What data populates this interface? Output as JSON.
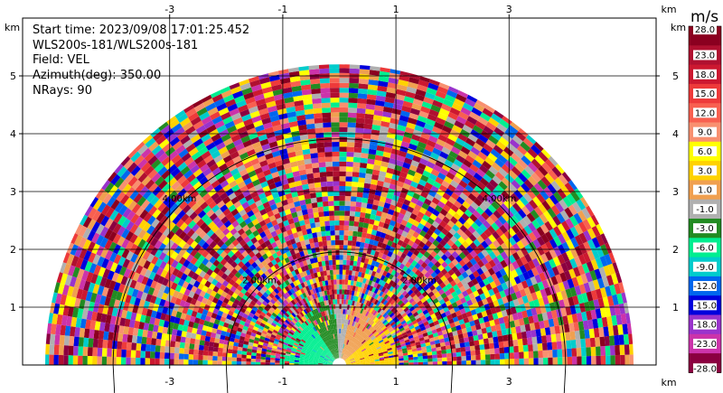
{
  "info": {
    "start_time": "Start time: 2023/09/08 17:01:25.452",
    "radar": "WLS200s-181/WLS200s-181",
    "field": "Field: VEL",
    "azimuth": "Azimuth(deg): 350.00",
    "nrays": "NRays: 90"
  },
  "chart_data": {
    "type": "heatmap",
    "title": "",
    "xlabel": "km",
    "ylabel": "km",
    "x_ticks": [
      "-3",
      "-1",
      "1",
      "3"
    ],
    "x_unit": "km",
    "y_ticks": [
      "1",
      "2",
      "3",
      "4",
      "5"
    ],
    "y_unit": "km",
    "xlim": [
      -5.6,
      5.6
    ],
    "ylim": [
      0,
      6
    ],
    "grid": true,
    "range_rings": [
      {
        "radius_km": 2,
        "label": "2.00km"
      },
      {
        "radius_km": 4,
        "label": "4.00km"
      }
    ],
    "max_range_km": 5.2,
    "colorbar": {
      "unit": "m/s",
      "labels": [
        "28.0",
        "23.0",
        "18.0",
        "15.0",
        "12.0",
        "9.0",
        "6.0",
        "3.0",
        "1.0",
        "-1.0",
        "-3.0",
        "-6.0",
        "-9.0",
        "-12.0",
        "-15.0",
        "-18.0",
        "-23.0",
        "-28.0"
      ],
      "colors": [
        "#8b0020",
        "#b01030",
        "#cc1830",
        "#ee3a3a",
        "#f86050",
        "#f89070",
        "#ffff00",
        "#ffd200",
        "#f0a050",
        "#b0b0b0",
        "#228b22",
        "#00ee90",
        "#00cccc",
        "#0066ee",
        "#0000dd",
        "#9933cc",
        "#cc33aa",
        "#8b0040"
      ]
    },
    "near_field": {
      "description_values_m_s": {
        "left_sector": -6.0,
        "left_mid": -3.0,
        "center": 0.0,
        "right_mid": 1.0,
        "right": 3.0
      }
    }
  }
}
